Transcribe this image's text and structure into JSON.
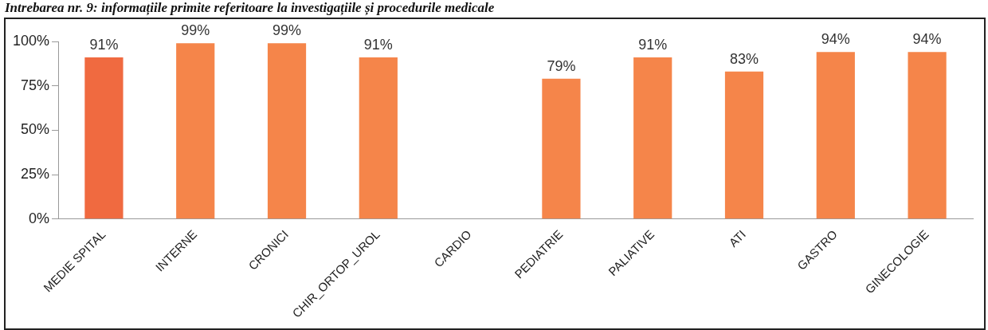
{
  "chart_data": {
    "type": "bar",
    "title": "Intrebarea nr. 9: informațiile primite referitoare la investigațiile și procedurile medicale",
    "categories": [
      "MEDIE SPITAL",
      "INTERNE",
      "CRONICI",
      "CHIR_ORTOP_UROL",
      "CARDIO",
      "PEDIATRIE",
      "PALIATIVE",
      "ATI",
      "GASTRO",
      "GINECOLOGIE"
    ],
    "values": [
      91,
      99,
      99,
      91,
      null,
      79,
      91,
      83,
      94,
      94
    ],
    "value_labels": [
      "91%",
      "99%",
      "99%",
      "91%",
      null,
      "79%",
      "91%",
      "83%",
      "94%",
      "94%"
    ],
    "colors": [
      "#f06a40",
      "#f5854a",
      "#f5854a",
      "#f5854a",
      "#f5854a",
      "#f5854a",
      "#f5854a",
      "#f5854a",
      "#f5854a",
      "#f5854a"
    ],
    "ylim": [
      0,
      100
    ],
    "yticks": [
      {
        "value": 0,
        "label": "0%"
      },
      {
        "value": 25,
        "label": "25%"
      },
      {
        "value": 50,
        "label": "50%"
      },
      {
        "value": 75,
        "label": "75%"
      },
      {
        "value": 100,
        "label": "100%"
      }
    ],
    "grid": false,
    "legend": false
  }
}
